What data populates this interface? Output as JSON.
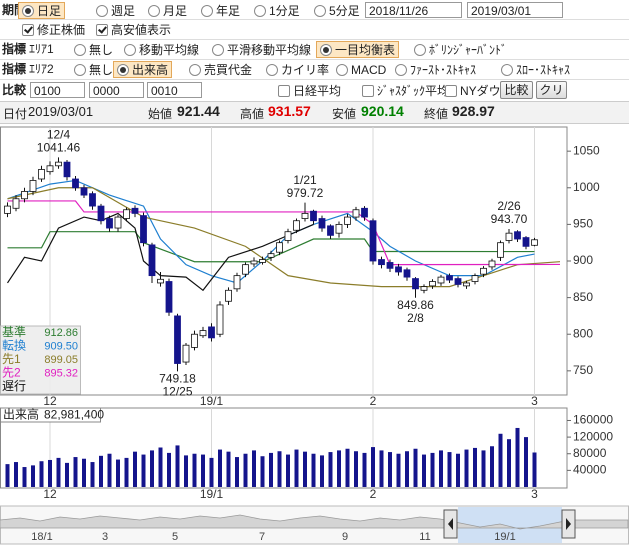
{
  "controls": {
    "period": {
      "label": "期間",
      "options": [
        "日足",
        "週足",
        "月足",
        "年足",
        "1分足",
        "5分足"
      ],
      "selected": 0,
      "from": "2018/11/26",
      "to": "2019/03/01"
    },
    "checks": [
      {
        "label": "修正株価",
        "checked": true
      },
      {
        "label": "高安値表示",
        "checked": true
      }
    ],
    "area1": {
      "label": "指標",
      "sub": "ｴﾘｱ1",
      "options": [
        "無し",
        "移動平均線",
        "平滑移動平均線",
        "一目均衡表",
        "ﾎﾞﾘﾝｼﾞｬｰﾊﾞﾝﾄﾞ"
      ],
      "selected": 3
    },
    "area2": {
      "label": "指標",
      "sub": "ｴﾘｱ2",
      "options": [
        "無し",
        "出来高",
        "売買代金",
        "カイリ率",
        "MACD",
        "ﾌｧｰｽﾄ･ｽﾄｷｬｽ",
        "ｽﾛｰ･ｽﾄｷｬｽ"
      ],
      "selected": 1
    },
    "compare": {
      "label": "比較",
      "inputs": [
        "0100",
        "0000",
        "0010"
      ],
      "checks": [
        "日経平均",
        "ｼﾞｬｽﾀﾞｯｸ平均",
        "NYダウ"
      ],
      "buttons": [
        "比較",
        "クリア"
      ]
    }
  },
  "info": {
    "date_label": "日付",
    "date": "2019/03/01",
    "prices": [
      {
        "label": "始値",
        "value": 921.44,
        "color": "#222222"
      },
      {
        "label": "高値",
        "value": 931.57,
        "color": "#e00000"
      },
      {
        "label": "安値",
        "value": 920.14,
        "color": "#008000"
      },
      {
        "label": "終値",
        "value": 928.97,
        "color": "#222222"
      }
    ]
  },
  "chart_data": [
    {
      "type": "candlestick",
      "open": [
        965,
        972,
        985,
        995,
        1012,
        1022,
        1030,
        1035,
        1012,
        1000,
        992,
        975,
        958,
        945,
        958,
        972,
        962,
        922,
        870,
        872,
        825,
        762,
        782,
        798,
        810,
        800,
        845,
        862,
        882,
        896,
        898,
        905,
        912,
        928,
        942,
        958,
        968,
        958,
        948,
        938,
        950,
        960,
        972,
        955,
        902,
        898,
        892,
        888,
        876,
        860,
        866,
        870,
        880,
        876,
        866,
        872,
        882,
        892,
        905,
        928,
        940,
        932,
        921.44
      ],
      "high": [
        980,
        990,
        1000,
        1015,
        1030,
        1036,
        1041.46,
        1038,
        1016,
        1004,
        995,
        978,
        962,
        963,
        973,
        976,
        966,
        925,
        885,
        876,
        828,
        788,
        805,
        810,
        815,
        845,
        864,
        884,
        898,
        905,
        906,
        914,
        928,
        944,
        958,
        979.72,
        970,
        962,
        950,
        954,
        964,
        974,
        975,
        958,
        906,
        902,
        896,
        891,
        878,
        868,
        875,
        881,
        883,
        879,
        873,
        883,
        893,
        903,
        928,
        943.7,
        942,
        934,
        931.57
      ],
      "low": [
        960,
        968,
        980,
        990,
        1008,
        1018,
        1026,
        1010,
        996,
        986,
        970,
        950,
        940,
        940,
        954,
        960,
        920,
        870,
        865,
        825,
        749.18,
        758,
        778,
        795,
        790,
        796,
        840,
        858,
        878,
        892,
        895,
        900,
        908,
        924,
        938,
        954,
        950,
        940,
        930,
        932,
        945,
        955,
        955,
        895,
        890,
        885,
        880,
        873,
        849.86,
        856,
        862,
        866,
        870,
        864,
        862,
        868,
        878,
        888,
        900,
        924,
        926,
        916,
        920.14
      ],
      "close": [
        975,
        985,
        995,
        1010,
        1025,
        1030,
        1035,
        1015,
        1000,
        990,
        975,
        955,
        945,
        960,
        970,
        965,
        925,
        880,
        875,
        830,
        760,
        785,
        800,
        805,
        795,
        840,
        860,
        880,
        895,
        900,
        902,
        910,
        925,
        940,
        955,
        965,
        955,
        945,
        935,
        950,
        960,
        970,
        960,
        900,
        895,
        890,
        885,
        878,
        862,
        865,
        872,
        878,
        874,
        868,
        870,
        880,
        890,
        900,
        925,
        938,
        930,
        920,
        928.97
      ],
      "up_color": "#ffffff",
      "down_color": "#14148c",
      "series": [
        {
          "name": "基準",
          "color": "#2e7d32",
          "legend_value": 912.86,
          "x": [
            0,
            4,
            5,
            15,
            16,
            22,
            30,
            36,
            42,
            43,
            50,
            62
          ],
          "values": [
            918,
            918,
            940,
            940,
            925,
            899,
            899,
            930,
            930,
            913,
            913,
            912.86
          ]
        },
        {
          "name": "転換",
          "color": "#1e7fd0",
          "legend_value": 909.5,
          "legend_value_label": "909.50",
          "x": [
            0,
            5,
            8,
            12,
            16,
            18,
            21,
            24,
            27,
            30,
            33,
            36,
            40,
            43,
            45,
            48,
            52,
            56,
            60,
            62
          ],
          "values": [
            985,
            1005,
            1010,
            990,
            975,
            930,
            895,
            880,
            870,
            900,
            935,
            950,
            965,
            940,
            920,
            900,
            880,
            880,
            905,
            909.5
          ]
        },
        {
          "name": "先1",
          "color": "#8b7d2a",
          "legend_value": 899.05,
          "x": [
            0,
            6,
            10,
            16,
            22,
            28,
            33,
            38,
            44,
            52,
            56,
            60,
            65
          ],
          "values": [
            985,
            1000,
            1000,
            960,
            945,
            920,
            880,
            870,
            865,
            865,
            880,
            895,
            899.05
          ]
        },
        {
          "name": "先2",
          "color": "#e020c0",
          "legend_value": 895.32,
          "x": [
            0,
            8,
            9,
            41,
            43,
            45,
            65
          ],
          "values": [
            982,
            982,
            967,
            967,
            950,
            895,
            895.32
          ]
        },
        {
          "name": "遅行",
          "color": "#111111",
          "x": [
            0,
            2,
            4,
            6,
            9,
            11,
            13,
            15,
            16,
            18,
            21,
            23,
            26,
            30,
            33,
            35,
            36
          ],
          "values": [
            870,
            905,
            900,
            945,
            960,
            955,
            965,
            945,
            900,
            880,
            878,
            860,
            905,
            920,
            935,
            945,
            950
          ]
        }
      ],
      "ylim": [
        717,
        1083
      ],
      "yticks": [
        1050,
        1000,
        950,
        900,
        850,
        800,
        750
      ],
      "xticks": [
        {
          "value": 5,
          "label": "12"
        },
        {
          "value": 24,
          "label": "19/1"
        },
        {
          "value": 43,
          "label": "2"
        },
        {
          "value": 62,
          "label": "3"
        }
      ],
      "grid": true,
      "annotations": [
        {
          "x": 6,
          "label": "12/4",
          "value": 1041.46,
          "position": "above"
        },
        {
          "x": 20,
          "label": "12/25",
          "value": 749.18,
          "position": "below"
        },
        {
          "x": 35,
          "label": "1/21",
          "value": 979.72,
          "position": "above"
        },
        {
          "x": 48,
          "label": "2/8",
          "value": 849.86,
          "position": "below"
        },
        {
          "x": 59,
          "label": "2/26",
          "value": 943.7,
          "value_label": "943.70",
          "position": "above"
        }
      ]
    },
    {
      "type": "bar",
      "title": "出来高",
      "value_label": "82,981,400",
      "color": "#14148c",
      "values": [
        55000,
        60000,
        48000,
        52000,
        62000,
        65000,
        70000,
        58000,
        72000,
        68000,
        60000,
        75000,
        80000,
        66000,
        70000,
        85000,
        78000,
        88000,
        95000,
        82000,
        100000,
        76000,
        80000,
        78000,
        70000,
        90000,
        85000,
        72000,
        80000,
        88000,
        74000,
        82000,
        86000,
        78000,
        90000,
        85000,
        80000,
        76000,
        84000,
        88000,
        92000,
        86000,
        82000,
        96000,
        88000,
        84000,
        80000,
        86000,
        92000,
        78000,
        82000,
        88000,
        84000,
        80000,
        90000,
        94000,
        88000,
        98000,
        128000,
        115000,
        142000,
        120000,
        82981.4
      ],
      "ylim": [
        0,
        190000
      ],
      "yticks": [
        160000,
        120000,
        80000,
        40000
      ],
      "xticks": [
        {
          "value": 5,
          "label": "12"
        },
        {
          "value": 24,
          "label": "19/1"
        },
        {
          "value": 43,
          "label": "2"
        },
        {
          "value": 62,
          "label": "3"
        }
      ],
      "grid": true
    }
  ],
  "navigator": {
    "labels": [
      "18/1",
      "3",
      "5",
      "7",
      "9",
      "11",
      "19/1"
    ]
  }
}
